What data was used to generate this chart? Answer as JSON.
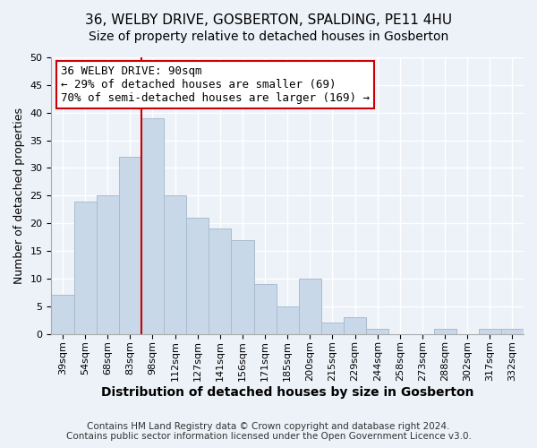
{
  "title": "36, WELBY DRIVE, GOSBERTON, SPALDING, PE11 4HU",
  "subtitle": "Size of property relative to detached houses in Gosberton",
  "xlabel": "Distribution of detached houses by size in Gosberton",
  "ylabel": "Number of detached properties",
  "bar_color": "#c8d8e8",
  "bar_edge_color": "#a8bccf",
  "categories": [
    "39sqm",
    "54sqm",
    "68sqm",
    "83sqm",
    "98sqm",
    "112sqm",
    "127sqm",
    "141sqm",
    "156sqm",
    "171sqm",
    "185sqm",
    "200sqm",
    "215sqm",
    "229sqm",
    "244sqm",
    "258sqm",
    "273sqm",
    "288sqm",
    "302sqm",
    "317sqm",
    "332sqm"
  ],
  "values": [
    7,
    24,
    25,
    32,
    39,
    25,
    21,
    19,
    17,
    9,
    5,
    10,
    2,
    3,
    1,
    0,
    0,
    1,
    0,
    1,
    1
  ],
  "ylim": [
    0,
    50
  ],
  "yticks": [
    0,
    5,
    10,
    15,
    20,
    25,
    30,
    35,
    40,
    45,
    50
  ],
  "vline_x_idx": 4,
  "vline_color": "#cc0000",
  "annotation_title": "36 WELBY DRIVE: 90sqm",
  "annotation_line1": "← 29% of detached houses are smaller (69)",
  "annotation_line2": "70% of semi-detached houses are larger (169) →",
  "annotation_box_color": "#ffffff",
  "annotation_box_edge": "#cc0000",
  "footer_line1": "Contains HM Land Registry data © Crown copyright and database right 2024.",
  "footer_line2": "Contains public sector information licensed under the Open Government Licence v3.0.",
  "background_color": "#edf2f8",
  "grid_color": "#ffffff",
  "title_fontsize": 11,
  "subtitle_fontsize": 10,
  "xlabel_fontsize": 10,
  "ylabel_fontsize": 9,
  "tick_fontsize": 8,
  "annotation_fontsize": 9,
  "footer_fontsize": 7.5
}
